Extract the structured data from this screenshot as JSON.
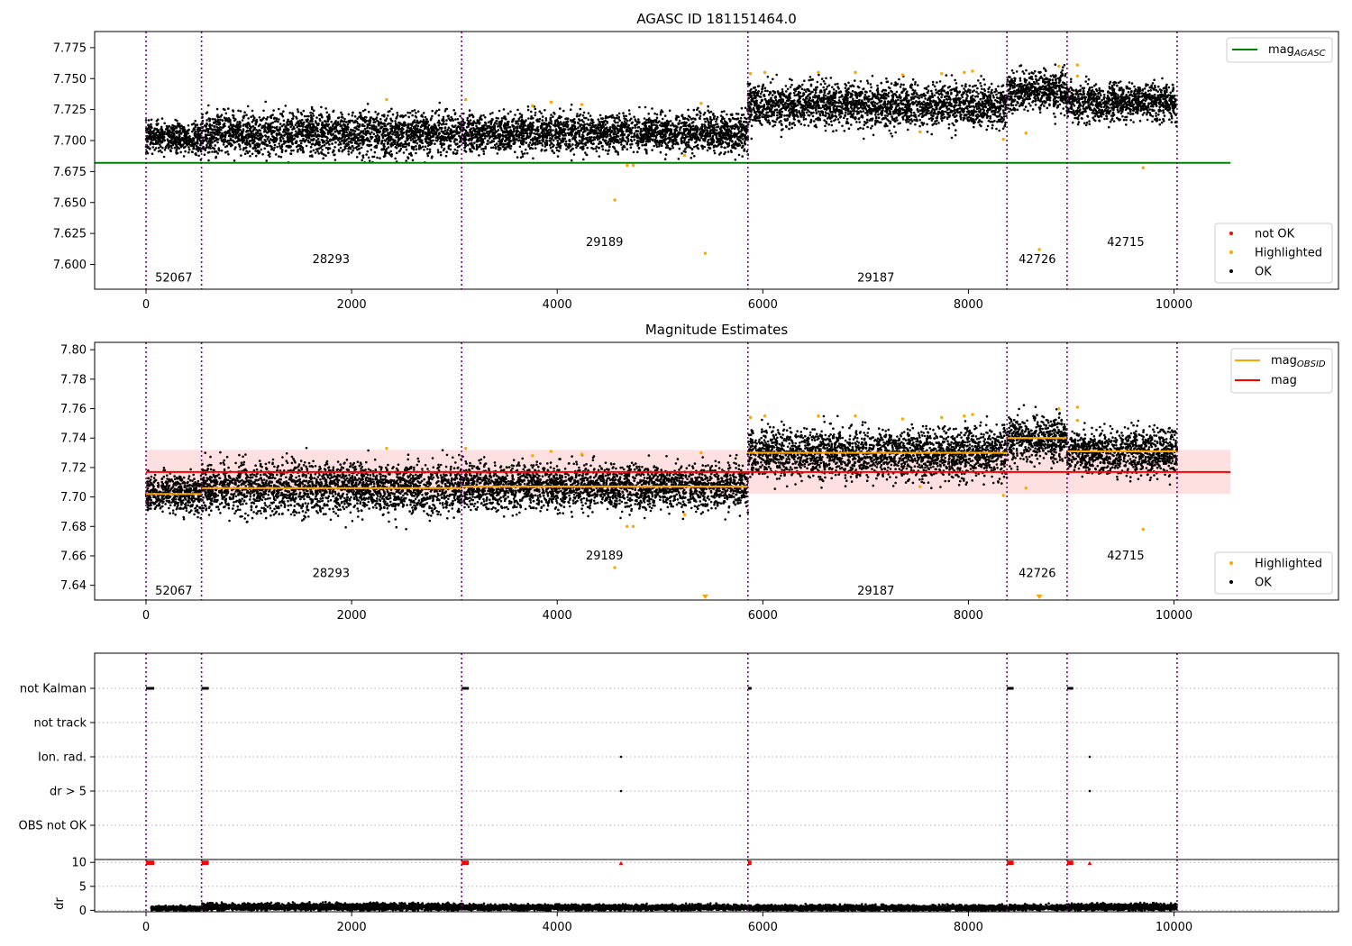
{
  "chart_data": [
    {
      "id": "p1",
      "type": "scatter",
      "title": "AGASC ID 181151464.0",
      "xlim": [
        -500,
        11600
      ],
      "ylim": [
        7.58,
        7.788
      ],
      "x_ticks": [
        0,
        2000,
        4000,
        6000,
        8000,
        10000
      ],
      "y_ticks": [
        7.6,
        7.625,
        7.65,
        7.675,
        7.7,
        7.725,
        7.75,
        7.775
      ],
      "y_tick_labels": [
        "7.600",
        "7.625",
        "7.650",
        "7.675",
        "7.700",
        "7.725",
        "7.750",
        "7.775"
      ],
      "obsid_boundaries": [
        0,
        540,
        3070,
        5855,
        8375,
        8960,
        10030
      ],
      "obsid_labels": [
        {
          "text": "52067",
          "x": 270,
          "y": 7.589
        },
        {
          "text": "28293",
          "x": 1800,
          "y": 7.604
        },
        {
          "text": "29189",
          "x": 4460,
          "y": 7.618
        },
        {
          "text": "29187",
          "x": 7100,
          "y": 7.589
        },
        {
          "text": "42726",
          "x": 8670,
          "y": 7.604
        },
        {
          "text": "42715",
          "x": 9530,
          "y": 7.618
        }
      ],
      "ok_segments": [
        {
          "x": [
            0,
            540
          ],
          "center": 7.703,
          "spread": 0.011
        },
        {
          "x": [
            540,
            3070
          ],
          "center": 7.706,
          "spread": 0.015
        },
        {
          "x": [
            3070,
            5855
          ],
          "center": 7.707,
          "spread": 0.013
        },
        {
          "x": [
            5855,
            8375
          ],
          "center": 7.73,
          "spread": 0.015
        },
        {
          "x": [
            8375,
            8960
          ],
          "center": 7.739,
          "spread": 0.013
        },
        {
          "x": [
            8960,
            10030
          ],
          "center": 7.731,
          "spread": 0.013
        }
      ],
      "highlighted_points": [
        [
          2340,
          7.733
        ],
        [
          3110,
          7.733
        ],
        [
          3760,
          7.728
        ],
        [
          3940,
          7.731
        ],
        [
          4240,
          7.729
        ],
        [
          4560,
          7.652
        ],
        [
          4680,
          7.68
        ],
        [
          4740,
          7.68
        ],
        [
          5240,
          7.688
        ],
        [
          5400,
          7.73
        ],
        [
          5440,
          7.609
        ],
        [
          5880,
          7.754
        ],
        [
          6020,
          7.755
        ],
        [
          6540,
          7.755
        ],
        [
          6900,
          7.755
        ],
        [
          7360,
          7.753
        ],
        [
          7530,
          7.707
        ],
        [
          7740,
          7.754
        ],
        [
          7960,
          7.755
        ],
        [
          8040,
          7.756
        ],
        [
          8340,
          7.701
        ],
        [
          8560,
          7.706
        ],
        [
          8690,
          7.612
        ],
        [
          8880,
          7.76
        ],
        [
          9060,
          7.761
        ],
        [
          9060,
          7.752
        ],
        [
          9700,
          7.678
        ]
      ],
      "reference_lines": [
        {
          "name": "mag_AGASC",
          "value": 7.682,
          "x": [
            -500,
            10550
          ],
          "color": "#008000"
        }
      ],
      "legend": [
        {
          "label": "mag",
          "subscript": "AGASC",
          "kind": "line",
          "color": "#008000"
        }
      ],
      "legend2": [
        {
          "label": "not OK",
          "kind": "dot",
          "color": "#ff0000"
        },
        {
          "label": "Highlighted",
          "kind": "dot",
          "color": "#ffa500"
        },
        {
          "label": "OK",
          "kind": "dot",
          "color": "#000000"
        }
      ]
    },
    {
      "id": "p2",
      "type": "scatter",
      "title": "Magnitude Estimates",
      "xlim": [
        -500,
        11600
      ],
      "ylim": [
        7.63,
        7.805
      ],
      "x_ticks": [
        0,
        2000,
        4000,
        6000,
        8000,
        10000
      ],
      "y_ticks": [
        7.64,
        7.66,
        7.68,
        7.7,
        7.72,
        7.74,
        7.76,
        7.78,
        7.8
      ],
      "y_tick_labels": [
        "7.64",
        "7.66",
        "7.68",
        "7.70",
        "7.72",
        "7.74",
        "7.76",
        "7.78",
        "7.80"
      ],
      "obsid_boundaries": [
        0,
        540,
        3070,
        5855,
        8375,
        8960,
        10030
      ],
      "obsid_labels": [
        {
          "text": "52067",
          "x": 270,
          "y": 7.636
        },
        {
          "text": "28293",
          "x": 1800,
          "y": 7.648
        },
        {
          "text": "29189",
          "x": 4460,
          "y": 7.66
        },
        {
          "text": "29187",
          "x": 7100,
          "y": 7.636
        },
        {
          "text": "42726",
          "x": 8670,
          "y": 7.648
        },
        {
          "text": "42715",
          "x": 9530,
          "y": 7.66
        }
      ],
      "ok_segments": [
        {
          "x": [
            0,
            540
          ],
          "center": 7.703,
          "spread": 0.011
        },
        {
          "x": [
            540,
            3070
          ],
          "center": 7.706,
          "spread": 0.015
        },
        {
          "x": [
            3070,
            5855
          ],
          "center": 7.707,
          "spread": 0.013
        },
        {
          "x": [
            5855,
            8375
          ],
          "center": 7.73,
          "spread": 0.015
        },
        {
          "x": [
            8375,
            8960
          ],
          "center": 7.739,
          "spread": 0.013
        },
        {
          "x": [
            8960,
            10030
          ],
          "center": 7.731,
          "spread": 0.013
        }
      ],
      "highlighted_points": [
        [
          2340,
          7.733
        ],
        [
          3110,
          7.733
        ],
        [
          3760,
          7.728
        ],
        [
          3940,
          7.731
        ],
        [
          4240,
          7.729
        ],
        [
          4560,
          7.652
        ],
        [
          4680,
          7.68
        ],
        [
          4740,
          7.68
        ],
        [
          5240,
          7.688
        ],
        [
          5400,
          7.73
        ],
        [
          5880,
          7.754
        ],
        [
          6020,
          7.755
        ],
        [
          6540,
          7.755
        ],
        [
          6900,
          7.755
        ],
        [
          7360,
          7.753
        ],
        [
          7530,
          7.707
        ],
        [
          7740,
          7.754
        ],
        [
          7960,
          7.755
        ],
        [
          8040,
          7.756
        ],
        [
          8340,
          7.701
        ],
        [
          8560,
          7.706
        ],
        [
          8880,
          7.76
        ],
        [
          9060,
          7.761
        ],
        [
          9060,
          7.752
        ],
        [
          9700,
          7.678
        ]
      ],
      "out_of_range_markers": [
        [
          5440,
          7.6315
        ],
        [
          8690,
          7.6315
        ]
      ],
      "mag_obsid": [
        {
          "x": [
            0,
            540
          ],
          "value": 7.702
        },
        {
          "x": [
            540,
            3070
          ],
          "value": 7.706
        },
        {
          "x": [
            3070,
            5855
          ],
          "value": 7.707
        },
        {
          "x": [
            5855,
            8375
          ],
          "value": 7.73
        },
        {
          "x": [
            8375,
            8960
          ],
          "value": 7.74
        },
        {
          "x": [
            8960,
            10030
          ],
          "value": 7.731
        }
      ],
      "mag": {
        "value": 7.717,
        "band": [
          7.702,
          7.732
        ],
        "x": [
          0,
          10550
        ]
      },
      "legend": [
        {
          "label": "mag",
          "subscript": "OBSID",
          "kind": "line",
          "color": "#ffa500"
        },
        {
          "label": "mag",
          "subscript": "",
          "kind": "line",
          "color": "#ff0000"
        }
      ],
      "legend2": [
        {
          "label": "Highlighted",
          "kind": "dot",
          "color": "#ffa500"
        },
        {
          "label": "OK",
          "kind": "dot",
          "color": "#000000"
        }
      ]
    },
    {
      "id": "p3",
      "type": "scatter",
      "title": "",
      "xlim": [
        -500,
        11600
      ],
      "x_ticks": [
        0,
        2000,
        4000,
        6000,
        8000,
        10000
      ],
      "categories": [
        "not Kalman",
        "not track",
        "Ion. rad.",
        "dr > 5",
        "OBS not OK"
      ],
      "flag_points": {
        "not Kalman": [
          [
            0,
            80
          ],
          [
            540,
            610
          ],
          [
            3070,
            3140
          ],
          [
            5855,
            5890
          ],
          [
            8375,
            8440
          ],
          [
            8960,
            9020
          ]
        ],
        "not track": [],
        "Ion. rad.": [
          [
            4620,
            4620
          ],
          [
            9180,
            9180
          ]
        ],
        "dr > 5": [
          [
            4620,
            4620
          ],
          [
            9180,
            9180
          ]
        ],
        "OBS not OK": []
      },
      "obsid_boundaries": [
        0,
        540,
        3070,
        5855,
        8375,
        8960,
        10030
      ]
    },
    {
      "id": "p4",
      "type": "scatter",
      "ylabel": "dr",
      "xlim": [
        -500,
        11600
      ],
      "ylim": [
        -0.3,
        10.6
      ],
      "x_ticks": [
        0,
        2000,
        4000,
        6000,
        8000,
        10000
      ],
      "y_ticks": [
        0,
        5,
        10
      ],
      "ok_segments": [
        {
          "x": [
            50,
            540
          ],
          "center": 0.4,
          "spread": 0.4
        },
        {
          "x": [
            540,
            3070
          ],
          "center": 0.7,
          "spread": 0.6
        },
        {
          "x": [
            3070,
            5855
          ],
          "center": 0.6,
          "spread": 0.5
        },
        {
          "x": [
            5855,
            8375
          ],
          "center": 0.5,
          "spread": 0.5
        },
        {
          "x": [
            8375,
            8960
          ],
          "center": 0.6,
          "spread": 0.5
        },
        {
          "x": [
            8960,
            10030
          ],
          "center": 0.7,
          "spread": 0.6
        }
      ],
      "clipped_red_markers": [
        [
          0,
          80
        ],
        [
          540,
          610
        ],
        [
          3070,
          3140
        ],
        [
          5855,
          5890
        ],
        [
          8375,
          8440
        ],
        [
          8960,
          9020
        ],
        [
          4620,
          4620
        ],
        [
          9180,
          9180
        ]
      ],
      "obsid_boundaries": [
        0,
        540,
        3070,
        5855,
        8375,
        8960,
        10030
      ]
    }
  ]
}
